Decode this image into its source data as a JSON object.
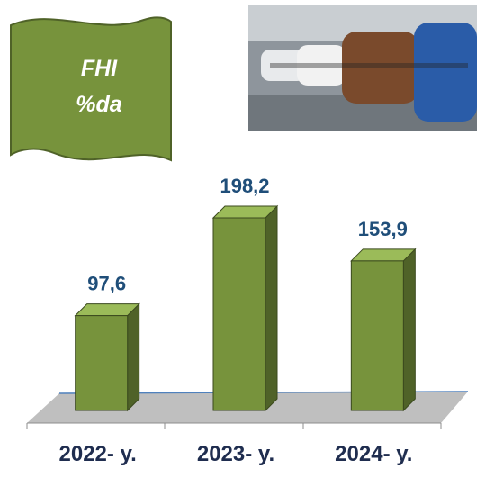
{
  "chart_data": {
    "type": "bar3d",
    "title": [
      "FHI",
      "%da"
    ],
    "categories": [
      "2022- y.",
      "2023- y.",
      "2024- y."
    ],
    "values": [
      97.6,
      198.2,
      153.9
    ],
    "value_labels": [
      "97,6",
      "198,2",
      "153,9"
    ],
    "color": "#77933c"
  }
}
